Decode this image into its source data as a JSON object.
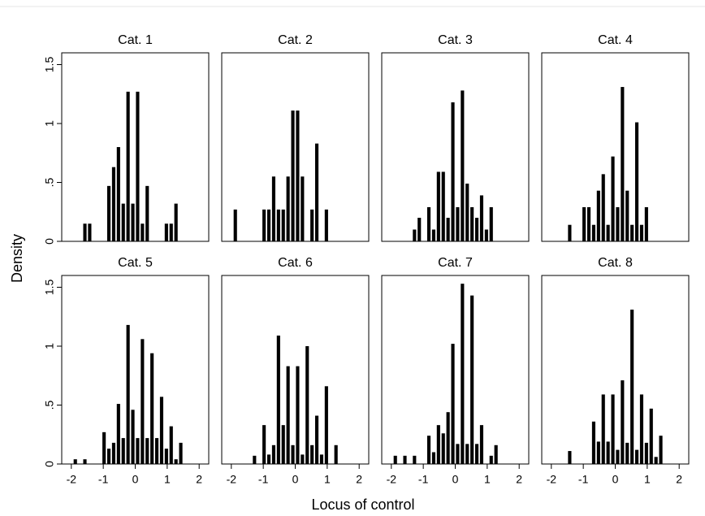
{
  "chart_data": [
    {
      "type": "histogram",
      "title": "Cat. 1",
      "color": "#000000",
      "xlim": [
        -2.3,
        2.3
      ],
      "ylim": [
        0,
        1.6
      ],
      "yticks": [
        0,
        {
          "value": 0.5,
          "label": ".5"
        },
        1,
        1.5
      ],
      "bins": [
        -1.95,
        -1.8,
        -1.65,
        -1.5,
        -1.35,
        -1.2,
        -1.05,
        -0.9,
        -0.75,
        -0.6,
        -0.45,
        -0.3,
        -0.15,
        0,
        0.15,
        0.3,
        0.45,
        0.6,
        0.75,
        0.9,
        1.05,
        1.2,
        1.35,
        1.5
      ],
      "values": [
        0,
        0,
        0.15,
        0.15,
        0,
        0,
        0,
        0.47,
        0.63,
        0.8,
        0.32,
        1.27,
        0.32,
        1.27,
        0.15,
        0.47,
        0,
        0,
        0,
        0.15,
        0.15,
        0.32,
        0
      ]
    },
    {
      "type": "histogram",
      "title": "Cat. 2",
      "color": "#000000",
      "xlim": [
        -2.3,
        2.3
      ],
      "ylim": [
        0,
        1.6
      ],
      "bins": [
        -1.95,
        -1.8,
        -1.65,
        -1.5,
        -1.35,
        -1.2,
        -1.05,
        -0.9,
        -0.75,
        -0.6,
        -0.45,
        -0.3,
        -0.15,
        0,
        0.15,
        0.3,
        0.45,
        0.6,
        0.75,
        0.9,
        1.05,
        1.2,
        1.35,
        1.5
      ],
      "values": [
        0.27,
        0,
        0,
        0,
        0,
        0,
        0.27,
        0.27,
        0.55,
        0.27,
        0.27,
        0.55,
        1.11,
        1.11,
        0.55,
        0,
        0.27,
        0.83,
        0,
        0.27,
        0,
        0,
        0
      ]
    },
    {
      "type": "histogram",
      "title": "Cat. 3",
      "color": "#000000",
      "xlim": [
        -2.3,
        2.3
      ],
      "ylim": [
        0,
        1.6
      ],
      "bins": [
        -1.95,
        -1.8,
        -1.65,
        -1.5,
        -1.35,
        -1.2,
        -1.05,
        -0.9,
        -0.75,
        -0.6,
        -0.45,
        -0.3,
        -0.15,
        0,
        0.15,
        0.3,
        0.45,
        0.6,
        0.75,
        0.9,
        1.05,
        1.2,
        1.35,
        1.5
      ],
      "values": [
        0,
        0,
        0,
        0,
        0.1,
        0.2,
        0,
        0.29,
        0.1,
        0.59,
        0.59,
        0.2,
        1.18,
        0.29,
        1.28,
        0.49,
        0.29,
        0.2,
        0.39,
        0.1,
        0.29,
        0,
        0
      ]
    },
    {
      "type": "histogram",
      "title": "Cat. 4",
      "color": "#000000",
      "xlim": [
        -2.3,
        2.3
      ],
      "ylim": [
        0,
        1.6
      ],
      "bins": [
        -1.95,
        -1.8,
        -1.65,
        -1.5,
        -1.35,
        -1.2,
        -1.05,
        -0.9,
        -0.75,
        -0.6,
        -0.45,
        -0.3,
        -0.15,
        0,
        0.15,
        0.3,
        0.45,
        0.6,
        0.75,
        0.9,
        1.05,
        1.2,
        1.35,
        1.5
      ],
      "values": [
        0,
        0,
        0,
        0.14,
        0,
        0,
        0.29,
        0.29,
        0.14,
        0.43,
        0.57,
        0.14,
        0.72,
        0.29,
        1.31,
        0.43,
        0.14,
        1.01,
        0.14,
        0.29,
        0,
        0,
        0
      ]
    },
    {
      "type": "histogram",
      "title": "Cat. 5",
      "color": "#000000",
      "xlim": [
        -2.3,
        2.3
      ],
      "ylim": [
        0,
        1.6
      ],
      "yticks": [
        0,
        {
          "value": 0.5,
          "label": ".5"
        },
        1,
        1.5
      ],
      "xticks": [
        -2,
        -1,
        0,
        1,
        2
      ],
      "bins": [
        -1.95,
        -1.8,
        -1.65,
        -1.5,
        -1.35,
        -1.2,
        -1.05,
        -0.9,
        -0.75,
        -0.6,
        -0.45,
        -0.3,
        -0.15,
        0,
        0.15,
        0.3,
        0.45,
        0.6,
        0.75,
        0.9,
        1.05,
        1.2,
        1.35,
        1.5
      ],
      "values": [
        0.04,
        0,
        0.04,
        0,
        0,
        0,
        0.27,
        0.13,
        0.18,
        0.51,
        0.22,
        1.18,
        0.46,
        0.22,
        1.06,
        0.22,
        0.94,
        0.22,
        0.57,
        0.13,
        0.32,
        0.04,
        0.18
      ]
    },
    {
      "type": "histogram",
      "title": "Cat. 6",
      "color": "#000000",
      "xlim": [
        -2.3,
        2.3
      ],
      "ylim": [
        0,
        1.6
      ],
      "xticks": [
        -2,
        -1,
        0,
        1,
        2
      ],
      "bins": [
        -1.95,
        -1.8,
        -1.65,
        -1.5,
        -1.35,
        -1.2,
        -1.05,
        -0.9,
        -0.75,
        -0.6,
        -0.45,
        -0.3,
        -0.15,
        0,
        0.15,
        0.3,
        0.45,
        0.6,
        0.75,
        0.9,
        1.05,
        1.2,
        1.35,
        1.5
      ],
      "values": [
        0,
        0,
        0,
        0,
        0.07,
        0,
        0.33,
        0.08,
        0.16,
        1.09,
        0.33,
        0.83,
        0.16,
        0.83,
        0.08,
        1.0,
        0.16,
        0.41,
        0.08,
        0.66,
        0,
        0.16,
        0
      ]
    },
    {
      "type": "histogram",
      "title": "Cat. 7",
      "color": "#000000",
      "xlim": [
        -2.3,
        2.3
      ],
      "ylim": [
        0,
        1.6
      ],
      "xticks": [
        -2,
        -1,
        0,
        1,
        2
      ],
      "bins": [
        -1.95,
        -1.8,
        -1.65,
        -1.5,
        -1.35,
        -1.2,
        -1.05,
        -0.9,
        -0.75,
        -0.6,
        -0.45,
        -0.3,
        -0.15,
        0,
        0.15,
        0.3,
        0.45,
        0.6,
        0.75,
        0.9,
        1.05,
        1.2,
        1.35,
        1.5
      ],
      "values": [
        0.07,
        0,
        0.07,
        0,
        0.07,
        0,
        0,
        0.24,
        0.1,
        0.33,
        0.26,
        0.44,
        1.02,
        0.17,
        1.53,
        0.17,
        1.43,
        0.17,
        0.33,
        0,
        0.07,
        0.16,
        0
      ]
    },
    {
      "type": "histogram",
      "title": "Cat. 8",
      "color": "#000000",
      "xlim": [
        -2.3,
        2.3
      ],
      "ylim": [
        0,
        1.6
      ],
      "xticks": [
        -2,
        -1,
        0,
        1,
        2
      ],
      "bins": [
        -1.95,
        -1.8,
        -1.65,
        -1.5,
        -1.35,
        -1.2,
        -1.05,
        -0.9,
        -0.75,
        -0.6,
        -0.45,
        -0.3,
        -0.15,
        0,
        0.15,
        0.3,
        0.45,
        0.6,
        0.75,
        0.9,
        1.05,
        1.2,
        1.35,
        1.5
      ],
      "values": [
        0,
        0,
        0,
        0.11,
        0,
        0,
        0,
        0,
        0.36,
        0.19,
        0.59,
        0.19,
        0.59,
        0.12,
        0.71,
        0.18,
        1.31,
        0.12,
        0.59,
        0.18,
        0.47,
        0.06,
        0.24
      ]
    }
  ],
  "xlabel": "Locus of control",
  "ylabel": "Density"
}
